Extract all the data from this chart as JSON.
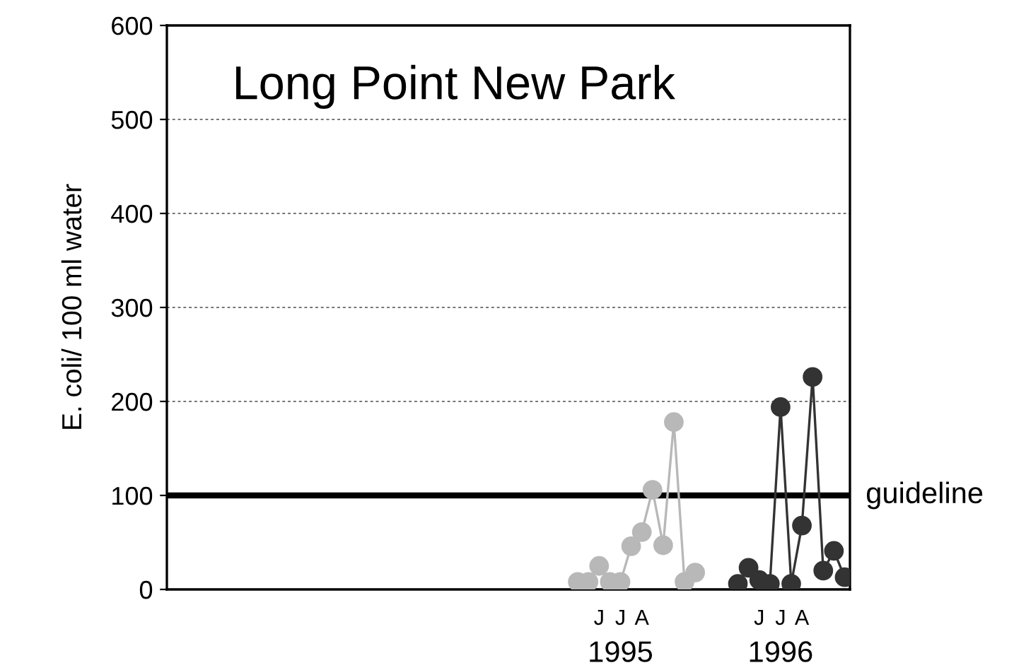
{
  "chart_data": {
    "type": "line",
    "title": "Long Point New Park",
    "ylabel": "E. coli/ 100 ml water",
    "ylim": [
      0,
      600
    ],
    "yticks": [
      0,
      100,
      200,
      300,
      400,
      500,
      600
    ],
    "categories": [
      null,
      null,
      null,
      null,
      null,
      null,
      null,
      null,
      null,
      null,
      null,
      null,
      null,
      null,
      null,
      null,
      null,
      null,
      null,
      null,
      null,
      null,
      null,
      null,
      null,
      null,
      null,
      null,
      null,
      null,
      null,
      null,
      null,
      null,
      null,
      null,
      null,
      null,
      null,
      null,
      "J",
      null,
      "J",
      null,
      "A",
      null,
      null,
      null,
      null,
      null,
      null,
      null,
      null,
      null,
      null,
      "J",
      null,
      "J",
      null,
      "A",
      null,
      null,
      null,
      null
    ],
    "annotations": [
      "1995",
      "1996"
    ],
    "grid": "y",
    "marker": "circle",
    "line_style": "solid",
    "ref_lines": [
      {
        "axis": "y",
        "value": 100,
        "label": "guideline",
        "color": "#000000"
      }
    ],
    "series": [
      {
        "color": "#b8b8b8",
        "values": [
          null,
          null,
          null,
          null,
          null,
          null,
          null,
          null,
          null,
          null,
          null,
          null,
          null,
          null,
          null,
          null,
          null,
          null,
          null,
          null,
          null,
          null,
          null,
          null,
          null,
          null,
          null,
          null,
          null,
          null,
          null,
          null,
          null,
          null,
          null,
          null,
          null,
          null,
          8,
          8,
          25,
          8,
          8,
          46,
          61,
          106,
          47,
          178,
          8,
          18,
          null,
          null,
          null,
          null,
          null,
          null,
          null,
          null,
          null,
          null,
          null,
          null,
          null,
          null
        ]
      },
      {
        "color": "#333333",
        "values": [
          null,
          null,
          null,
          null,
          null,
          null,
          null,
          null,
          null,
          null,
          null,
          null,
          null,
          null,
          null,
          null,
          null,
          null,
          null,
          null,
          null,
          null,
          null,
          null,
          null,
          null,
          null,
          null,
          null,
          null,
          null,
          null,
          null,
          null,
          null,
          null,
          null,
          null,
          null,
          null,
          null,
          null,
          null,
          null,
          null,
          null,
          null,
          null,
          null,
          null,
          null,
          null,
          null,
          6,
          23,
          10,
          6,
          194,
          6,
          68,
          226,
          20,
          41,
          13
        ]
      }
    ]
  }
}
